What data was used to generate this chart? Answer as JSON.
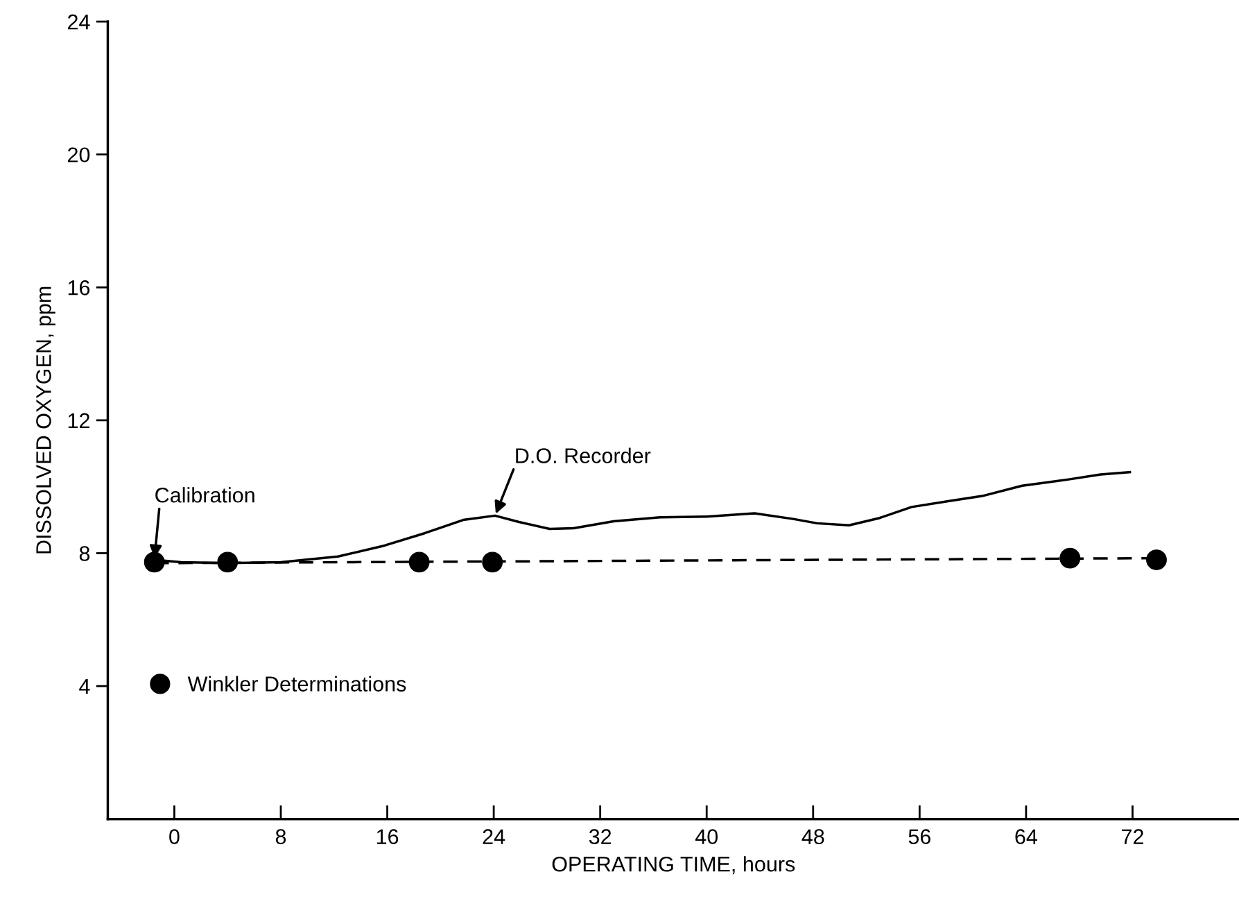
{
  "chart_data": {
    "type": "line",
    "xlabel": "OPERATING TIME, hours",
    "ylabel": "DISSOLVED OXYGEN, ppm",
    "xlim": [
      -5,
      80
    ],
    "ylim": [
      0,
      24
    ],
    "xticks": [
      0,
      8,
      16,
      24,
      32,
      40,
      48,
      56,
      64,
      72
    ],
    "yticks": [
      4,
      8,
      12,
      16,
      20,
      24
    ],
    "legend": "bottom left",
    "series": [
      {
        "color": "#000000",
        "line_style": "solid",
        "marker": "none",
        "x": [
          -1.5,
          0.5,
          4,
          8,
          12.3,
          15.8,
          18.8,
          21.7,
          24.1,
          25.9,
          28.2,
          30,
          33,
          36.5,
          40,
          43.6,
          46.5,
          48.3,
          50.7,
          53,
          55.4,
          58.4,
          60.7,
          63.7,
          67.2,
          69.6,
          71.8
        ],
        "values": [
          7.8,
          7.73,
          7.7,
          7.73,
          7.9,
          8.23,
          8.6,
          9.0,
          9.13,
          8.94,
          8.73,
          8.75,
          8.96,
          9.08,
          9.1,
          9.2,
          9.03,
          8.9,
          8.84,
          9.06,
          9.39,
          9.58,
          9.72,
          10.03,
          10.22,
          10.37,
          10.44
        ]
      },
      {
        "type": "line",
        "color": "#000000",
        "line_style": "dashed",
        "marker": "none",
        "x": [
          -1.5,
          73.8
        ],
        "values": [
          7.7,
          7.85
        ]
      },
      {
        "type": "scatter",
        "name": "Winkler Determinations",
        "color": "#000000",
        "marker": "circle",
        "x": [
          -1.5,
          4.0,
          18.4,
          23.9,
          67.3,
          73.8
        ],
        "values": [
          7.73,
          7.73,
          7.73,
          7.73,
          7.85,
          7.8
        ]
      }
    ],
    "annotations": [
      {
        "text": "Calibration",
        "x": -1.5,
        "y": 7.8
      },
      {
        "text": "D.O. Recorder",
        "x": 24.1,
        "y": 9.13
      }
    ]
  }
}
